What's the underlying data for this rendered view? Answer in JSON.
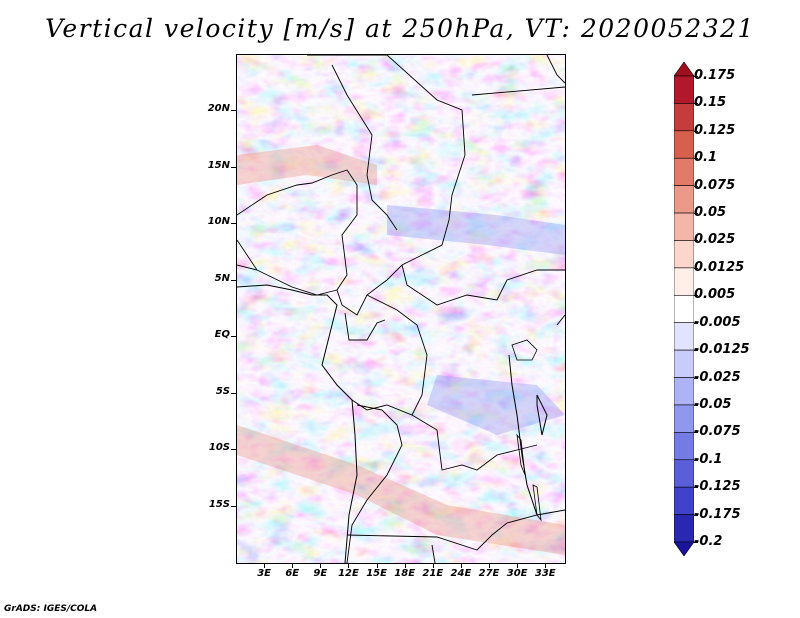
{
  "title": "Vertical velocity [m/s] at 250hPa, VT: 2020052321",
  "credit": "GrADS: IGES/COLA",
  "map": {
    "lon_range": [
      0,
      35
    ],
    "lat_range": [
      -20,
      25
    ],
    "lat_ticks": [
      {
        "lat": 20,
        "label": "20N"
      },
      {
        "lat": 15,
        "label": "15N"
      },
      {
        "lat": 10,
        "label": "10N"
      },
      {
        "lat": 5,
        "label": "5N"
      },
      {
        "lat": 0,
        "label": "EQ"
      },
      {
        "lat": -5,
        "label": "5S"
      },
      {
        "lat": -10,
        "label": "10S"
      },
      {
        "lat": -15,
        "label": "15S"
      }
    ],
    "lon_ticks": [
      {
        "lon": 3,
        "label": "3E"
      },
      {
        "lon": 6,
        "label": "6E"
      },
      {
        "lon": 9,
        "label": "9E"
      },
      {
        "lon": 12,
        "label": "12E"
      },
      {
        "lon": 15,
        "label": "15E"
      },
      {
        "lon": 18,
        "label": "18E"
      },
      {
        "lon": 21,
        "label": "21E"
      },
      {
        "lon": 24,
        "label": "24E"
      },
      {
        "lon": 27,
        "label": "27E"
      },
      {
        "lon": 30,
        "label": "30E"
      },
      {
        "lon": 33,
        "label": "33E"
      }
    ]
  },
  "colorbar": {
    "levels": [
      "0.175",
      "0.15",
      "0.125",
      "0.1",
      "0.075",
      "0.05",
      "0.025",
      "0.0125",
      "0.005",
      "-0.005",
      "-0.0125",
      "-0.025",
      "-0.05",
      "-0.075",
      "-0.1",
      "-0.125",
      "-0.175",
      "-0.2"
    ],
    "colors": [
      "#a00f1e",
      "#b2182b",
      "#c43c3c",
      "#d6604d",
      "#e07b6a",
      "#eb9a8a",
      "#f4b6a8",
      "#fcd6cc",
      "#ffeee9",
      "#ffffff",
      "#e2e4ff",
      "#c9ccfa",
      "#aeb3f5",
      "#9097ee",
      "#757be5",
      "#5a5ed8",
      "#4042c9",
      "#2a28b0",
      "#1a149a"
    ]
  }
}
